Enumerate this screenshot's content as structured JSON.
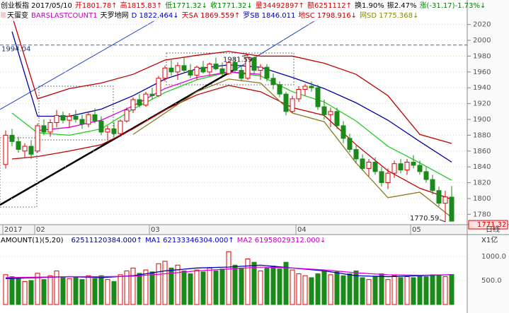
{
  "chart_data": [
    {
      "type": "candlestick",
      "info": [
        {
          "text": "创业板指 2017/05/10",
          "color": "#000000"
        },
        {
          "text": "开1801.78↑",
          "color": "#d00000"
        },
        {
          "text": "高1815.83↑",
          "color": "#d00000"
        },
        {
          "text": "低1771.32↓",
          "color": "#008000"
        },
        {
          "text": "收1771.32↓",
          "color": "#008000"
        },
        {
          "text": "量34492897↑",
          "color": "#d00000"
        },
        {
          "text": "额6251112↑",
          "color": "#d00000"
        },
        {
          "text": "换1.90%",
          "color": "#000000"
        },
        {
          "text": "振2.47%",
          "color": "#000000"
        },
        {
          "text": "涨(-31.17)-1.73%↓",
          "color": "#008000"
        }
      ],
      "indicators": [
        {
          "text": "天蛋变",
          "color": "#000000"
        },
        {
          "text": "BARSLASTCOUNT1",
          "color": "#c000c0"
        },
        {
          "text": "天罗地网",
          "color": "#000000"
        },
        {
          "text": "D 1822.464↓",
          "color": "#0000c0"
        },
        {
          "text": "天SA 1869.559↑",
          "color": "#c00000"
        },
        {
          "text": "罗SB 1846.011",
          "color": "#0000a0"
        },
        {
          "text": "地SC 1798.916↓",
          "color": "#c00000"
        },
        {
          "text": "网SD 1775.368↓",
          "color": "#8a8a00"
        }
      ],
      "ohlc": [
        [
          1843,
          1886,
          1838,
          1880
        ],
        [
          1880,
          1888,
          1866,
          1872
        ],
        [
          1872,
          1878,
          1858,
          1862
        ],
        [
          1860,
          1870,
          1852,
          1866
        ],
        [
          1866,
          1874,
          1850,
          1856
        ],
        [
          1860,
          1895,
          1858,
          1892
        ],
        [
          1892,
          1900,
          1880,
          1884
        ],
        [
          1884,
          1900,
          1878,
          1896
        ],
        [
          1896,
          1912,
          1890,
          1905
        ],
        [
          1905,
          1910,
          1895,
          1899
        ],
        [
          1899,
          1908,
          1890,
          1904
        ],
        [
          1904,
          1912,
          1896,
          1900
        ],
        [
          1900,
          1906,
          1888,
          1894
        ],
        [
          1894,
          1910,
          1890,
          1906
        ],
        [
          1906,
          1914,
          1895,
          1898
        ],
        [
          1898,
          1904,
          1880,
          1884
        ],
        [
          1884,
          1892,
          1874,
          1888
        ],
        [
          1888,
          1896,
          1878,
          1882
        ],
        [
          1882,
          1900,
          1880,
          1898
        ],
        [
          1898,
          1915,
          1896,
          1912
        ],
        [
          1912,
          1928,
          1908,
          1925
        ],
        [
          1925,
          1932,
          1915,
          1918
        ],
        [
          1918,
          1935,
          1916,
          1932
        ],
        [
          1932,
          1940,
          1925,
          1930
        ],
        [
          1930,
          1955,
          1928,
          1952
        ],
        [
          1952,
          1968,
          1948,
          1965
        ],
        [
          1965,
          1975,
          1955,
          1960
        ],
        [
          1960,
          1972,
          1950,
          1968
        ],
        [
          1968,
          1978,
          1960,
          1962
        ],
        [
          1962,
          1970,
          1952,
          1956
        ],
        [
          1956,
          1968,
          1950,
          1966
        ],
        [
          1966,
          1974,
          1958,
          1960
        ],
        [
          1960,
          1972,
          1955,
          1970
        ],
        [
          1970,
          1978,
          1962,
          1964
        ],
        [
          1964,
          1972,
          1955,
          1958
        ],
        [
          1958,
          1974,
          1956,
          1972
        ],
        [
          1972,
          1978,
          1960,
          1962
        ],
        [
          1962,
          1968,
          1948,
          1952
        ],
        [
          1952,
          1981.59,
          1950,
          1978
        ],
        [
          1978,
          1980,
          1958,
          1962
        ],
        [
          1962,
          1970,
          1950,
          1966
        ],
        [
          1966,
          1970,
          1948,
          1952
        ],
        [
          1952,
          1958,
          1938,
          1944
        ],
        [
          1944,
          1948,
          1928,
          1932
        ],
        [
          1932,
          1935,
          1905,
          1910
        ],
        [
          1910,
          1930,
          1908,
          1926
        ],
        [
          1926,
          1942,
          1922,
          1938
        ],
        [
          1938,
          1945,
          1930,
          1942
        ],
        [
          1942,
          1948,
          1935,
          1940
        ],
        [
          1940,
          1944,
          1912,
          1916
        ],
        [
          1916,
          1925,
          1900,
          1906
        ],
        [
          1906,
          1915,
          1890,
          1910
        ],
        [
          1910,
          1915,
          1888,
          1892
        ],
        [
          1892,
          1898,
          1870,
          1876
        ],
        [
          1876,
          1882,
          1858,
          1862
        ],
        [
          1862,
          1868,
          1845,
          1850
        ],
        [
          1850,
          1856,
          1835,
          1838
        ],
        [
          1838,
          1850,
          1828,
          1846
        ],
        [
          1846,
          1852,
          1830,
          1834
        ],
        [
          1834,
          1840,
          1815,
          1820
        ],
        [
          1820,
          1838,
          1812,
          1832
        ],
        [
          1832,
          1848,
          1826,
          1844
        ],
        [
          1844,
          1850,
          1832,
          1836
        ],
        [
          1836,
          1850,
          1830,
          1846
        ],
        [
          1846,
          1855,
          1838,
          1842
        ],
        [
          1842,
          1848,
          1830,
          1834
        ],
        [
          1834,
          1840,
          1820,
          1824
        ],
        [
          1824,
          1830,
          1805,
          1810
        ],
        [
          1810,
          1815,
          1790,
          1794
        ],
        [
          1794,
          1810,
          1770.59,
          1802
        ],
        [
          1801.78,
          1815.83,
          1771.32,
          1771.32
        ]
      ],
      "up_color": "#e00000",
      "down_color": "#1a8a1a",
      "xticks": [
        {
          "value": 0,
          "label": "2017"
        },
        {
          "value": 5,
          "label": "02"
        },
        {
          "value": 23,
          "label": "03"
        },
        {
          "value": 46,
          "label": "04"
        },
        {
          "value": 64,
          "label": "05"
        }
      ],
      "ylim": [
        1766,
        2034
      ],
      "yticks": [
        1780,
        1800,
        1820,
        1840,
        1860,
        1880,
        1900,
        1920,
        1940,
        1960,
        1980,
        2000,
        2020
      ],
      "grid": true,
      "lines": [
        {
          "color": "#c00000",
          "x": [
            1,
            5,
            10,
            15,
            20,
            25,
            30,
            35,
            40,
            45,
            50,
            55,
            60,
            65,
            70
          ],
          "values": [
            2031,
            1926,
            1939,
            1946,
            1957,
            1975,
            1981,
            1986,
            1980,
            1980,
            1971,
            1957,
            1930,
            1881,
            1869.6
          ]
        },
        {
          "color": "#0000a0",
          "x": [
            1,
            5,
            10,
            15,
            20,
            25,
            30,
            35,
            40,
            45,
            50,
            55,
            60,
            65,
            70
          ],
          "values": [
            2011,
            1904,
            1904,
            1913,
            1930,
            1951,
            1964,
            1969,
            1966,
            1953,
            1939,
            1921,
            1899,
            1872,
            1846
          ]
        },
        {
          "color": "#22cc22",
          "x": [
            1,
            5,
            10,
            15,
            20,
            25,
            30,
            35,
            40,
            45,
            50,
            55,
            60,
            65,
            70
          ],
          "values": [
            1908,
            1883,
            1880,
            1888,
            1913,
            1934,
            1950,
            1960,
            1955,
            1935,
            1922,
            1898,
            1866,
            1845,
            1823
          ]
        },
        {
          "color": "#c00000",
          "x": [
            1,
            5,
            10,
            15,
            20,
            25,
            30,
            35,
            40,
            45,
            50,
            55,
            60,
            65,
            70
          ],
          "values": [
            1850,
            1853,
            1860,
            1868,
            1888,
            1912,
            1931,
            1943,
            1935,
            1915,
            1905,
            1868,
            1835,
            1813,
            1799
          ]
        },
        {
          "color": "#8a7a20",
          "x": [
            20,
            25,
            30,
            35,
            40,
            45,
            50,
            55,
            60,
            65,
            70
          ],
          "values": [
            1881,
            1908,
            1935,
            1951,
            1946,
            1908,
            1897,
            1845,
            1801,
            1808,
            1776
          ]
        },
        {
          "color": "#e000e0",
          "x": [
            5,
            10,
            15,
            20,
            25,
            30,
            35,
            40
          ],
          "values": [
            1886,
            1890,
            1899,
            1917,
            1939,
            1953,
            1960,
            1957
          ]
        }
      ],
      "annotations": [
        {
          "value": 1994.04,
          "label": "1994.04",
          "x": 0
        },
        {
          "value": 1981.59,
          "label": "1981.59",
          "x": 38
        },
        {
          "value": 1770.59,
          "label": "1770.59",
          "x": 69
        }
      ],
      "last_price": {
        "value": 1771.32,
        "label": "1771.32"
      },
      "period": "日线"
    },
    {
      "type": "bar",
      "title": "AMOUNT(1)(5,20)",
      "info": [
        {
          "text": "62511120384.000↑",
          "color": "#000080"
        },
        {
          "text": "MA1 62133346304.000↑",
          "color": "#0000c0"
        },
        {
          "text": "MA2 61958029312.000↓",
          "color": "#c000c0"
        }
      ],
      "unit": "X1亿",
      "values": [
        620,
        580,
        540,
        480,
        500,
        650,
        520,
        600,
        700,
        560,
        540,
        580,
        520,
        600,
        540,
        600,
        520,
        480,
        620,
        700,
        760,
        650,
        720,
        680,
        850,
        900,
        760,
        820,
        700,
        640,
        720,
        680,
        760,
        700,
        740,
        1100,
        820,
        760,
        950,
        880,
        700,
        760,
        800,
        740,
        880,
        720,
        640,
        600,
        560,
        640,
        700,
        620,
        680,
        600,
        640,
        700,
        560,
        520,
        580,
        640,
        520,
        600,
        560,
        580,
        560,
        600,
        580,
        620,
        600,
        580,
        625
      ],
      "ylim": [
        0,
        1265
      ],
      "yticks": [
        {
          "value": 500,
          "label": "500.0"
        },
        {
          "value": 1000,
          "label": "1000.0"
        }
      ],
      "lines": [
        {
          "color": "#0000c0",
          "x": [
            0,
            5,
            10,
            15,
            20,
            25,
            30,
            35,
            40,
            45,
            50,
            55,
            60,
            65,
            70
          ],
          "values": [
            540,
            560,
            580,
            560,
            600,
            700,
            760,
            780,
            820,
            760,
            700,
            600,
            580,
            600,
            621
          ]
        },
        {
          "color": "#e000e0",
          "x": [
            0,
            5,
            10,
            15,
            20,
            25,
            30,
            35,
            40,
            45,
            50,
            55,
            60,
            65,
            70
          ],
          "values": [
            560,
            570,
            580,
            580,
            590,
            640,
            700,
            740,
            780,
            760,
            720,
            660,
            620,
            610,
            620
          ]
        }
      ]
    }
  ]
}
